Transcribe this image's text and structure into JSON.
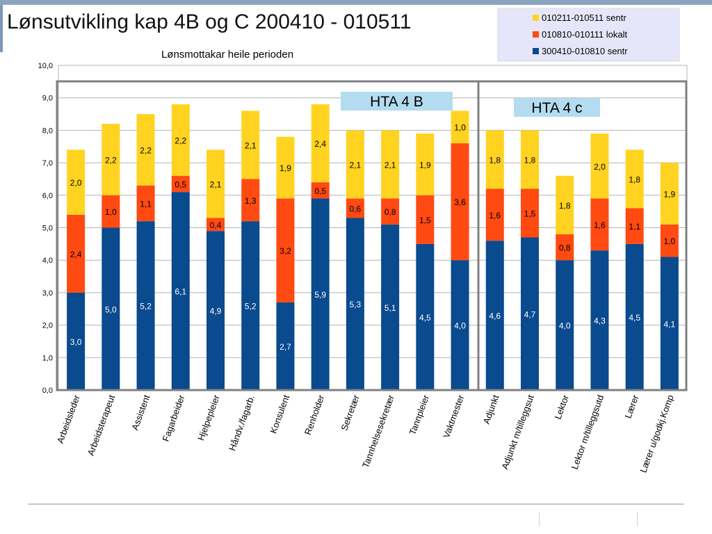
{
  "page": {
    "title": "Lønsutvikling kap 4B og C 200410 - 010511"
  },
  "chart_data": {
    "type": "bar",
    "stacked": true,
    "title": "Lønsmottakar heile perioden",
    "xlabel": "",
    "ylabel": "",
    "ylim": [
      0,
      10
    ],
    "yticks": [
      "0,0",
      "1,0",
      "2,0",
      "3,0",
      "4,0",
      "5,0",
      "6,0",
      "7,0",
      "8,0",
      "9,0",
      "10,0"
    ],
    "grid": true,
    "legend_position": "top-right",
    "categories": [
      "Arbeidsleder",
      "Arbeidsterapeut",
      "Assistent",
      "Fagarbeider",
      "Hjelpepleier",
      "Håndv./fagarb.",
      "Konsulent",
      "Renholder",
      "Sekretær",
      "Tannhelsesekretær",
      "Tannpleier",
      "Vaktmester",
      "Adjunkt",
      "Adjunkt m/tilleggsut",
      "Lektor",
      "Lektor m/tilleggsutd",
      "Lærer",
      "Lærer u/godkj.Komp"
    ],
    "series": [
      {
        "name": "300410-010810 sentr",
        "color": "#0a4a8e",
        "values": [
          3.0,
          5.0,
          5.2,
          6.1,
          4.9,
          5.2,
          2.7,
          5.9,
          5.3,
          5.1,
          4.5,
          4.0,
          4.6,
          4.7,
          4.0,
          4.3,
          4.5,
          4.1
        ],
        "labels": [
          "3,0",
          "5,0",
          "5,2",
          "6,1",
          "4,9",
          "5,2",
          "2,7",
          "5,9",
          "5,3",
          "5,1",
          "4,5",
          "4,0",
          "4,6",
          "4,7",
          "4,0",
          "4,3",
          "4,5",
          "4,1"
        ]
      },
      {
        "name": "010810-010111 lokalt",
        "color": "#ff4a12",
        "values": [
          2.4,
          1.0,
          1.1,
          0.5,
          0.4,
          1.3,
          3.2,
          0.5,
          0.6,
          0.8,
          1.5,
          3.6,
          1.6,
          1.5,
          0.8,
          1.6,
          1.1,
          1.0
        ],
        "labels": [
          "2,4",
          "1,0",
          "1,1",
          "0,5",
          "0,4",
          "1,3",
          "3,2",
          "0,5",
          "0,6",
          "0,8",
          "1,5",
          "3,6",
          "1,6",
          "1,5",
          "0,8",
          "1,6",
          "1,1",
          "1,0"
        ]
      },
      {
        "name": "010211-010511 sentr",
        "color": "#ffd320",
        "values": [
          2.0,
          2.2,
          2.2,
          2.2,
          2.1,
          2.1,
          1.9,
          2.4,
          2.1,
          2.1,
          1.9,
          1.0,
          1.8,
          1.8,
          1.8,
          2.0,
          1.8,
          1.9
        ],
        "labels": [
          "2,0",
          "2,2",
          "2,2",
          "2,2",
          "2,1",
          "2,1",
          "1,9",
          "2,4",
          "2,1",
          "2,1",
          "1,9",
          "1,0",
          "1,8",
          "1,8",
          "1,8",
          "2,0",
          "1,8",
          "1,9"
        ]
      }
    ],
    "legend_order": [
      "010211-010511 sentr",
      "010810-010111 lokalt",
      "300410-010810 sentr"
    ],
    "annotations": [
      {
        "text": "HTA 4 B",
        "group_start": 0,
        "group_end": 11
      },
      {
        "text": "HTA 4 c",
        "group_start": 12,
        "group_end": 17
      }
    ],
    "colors": {
      "gridline": "#b3b3b3",
      "group_box": "#808080",
      "annotation_bg": "#b4dcf0",
      "legend_bg": "#e6e6fa"
    }
  }
}
